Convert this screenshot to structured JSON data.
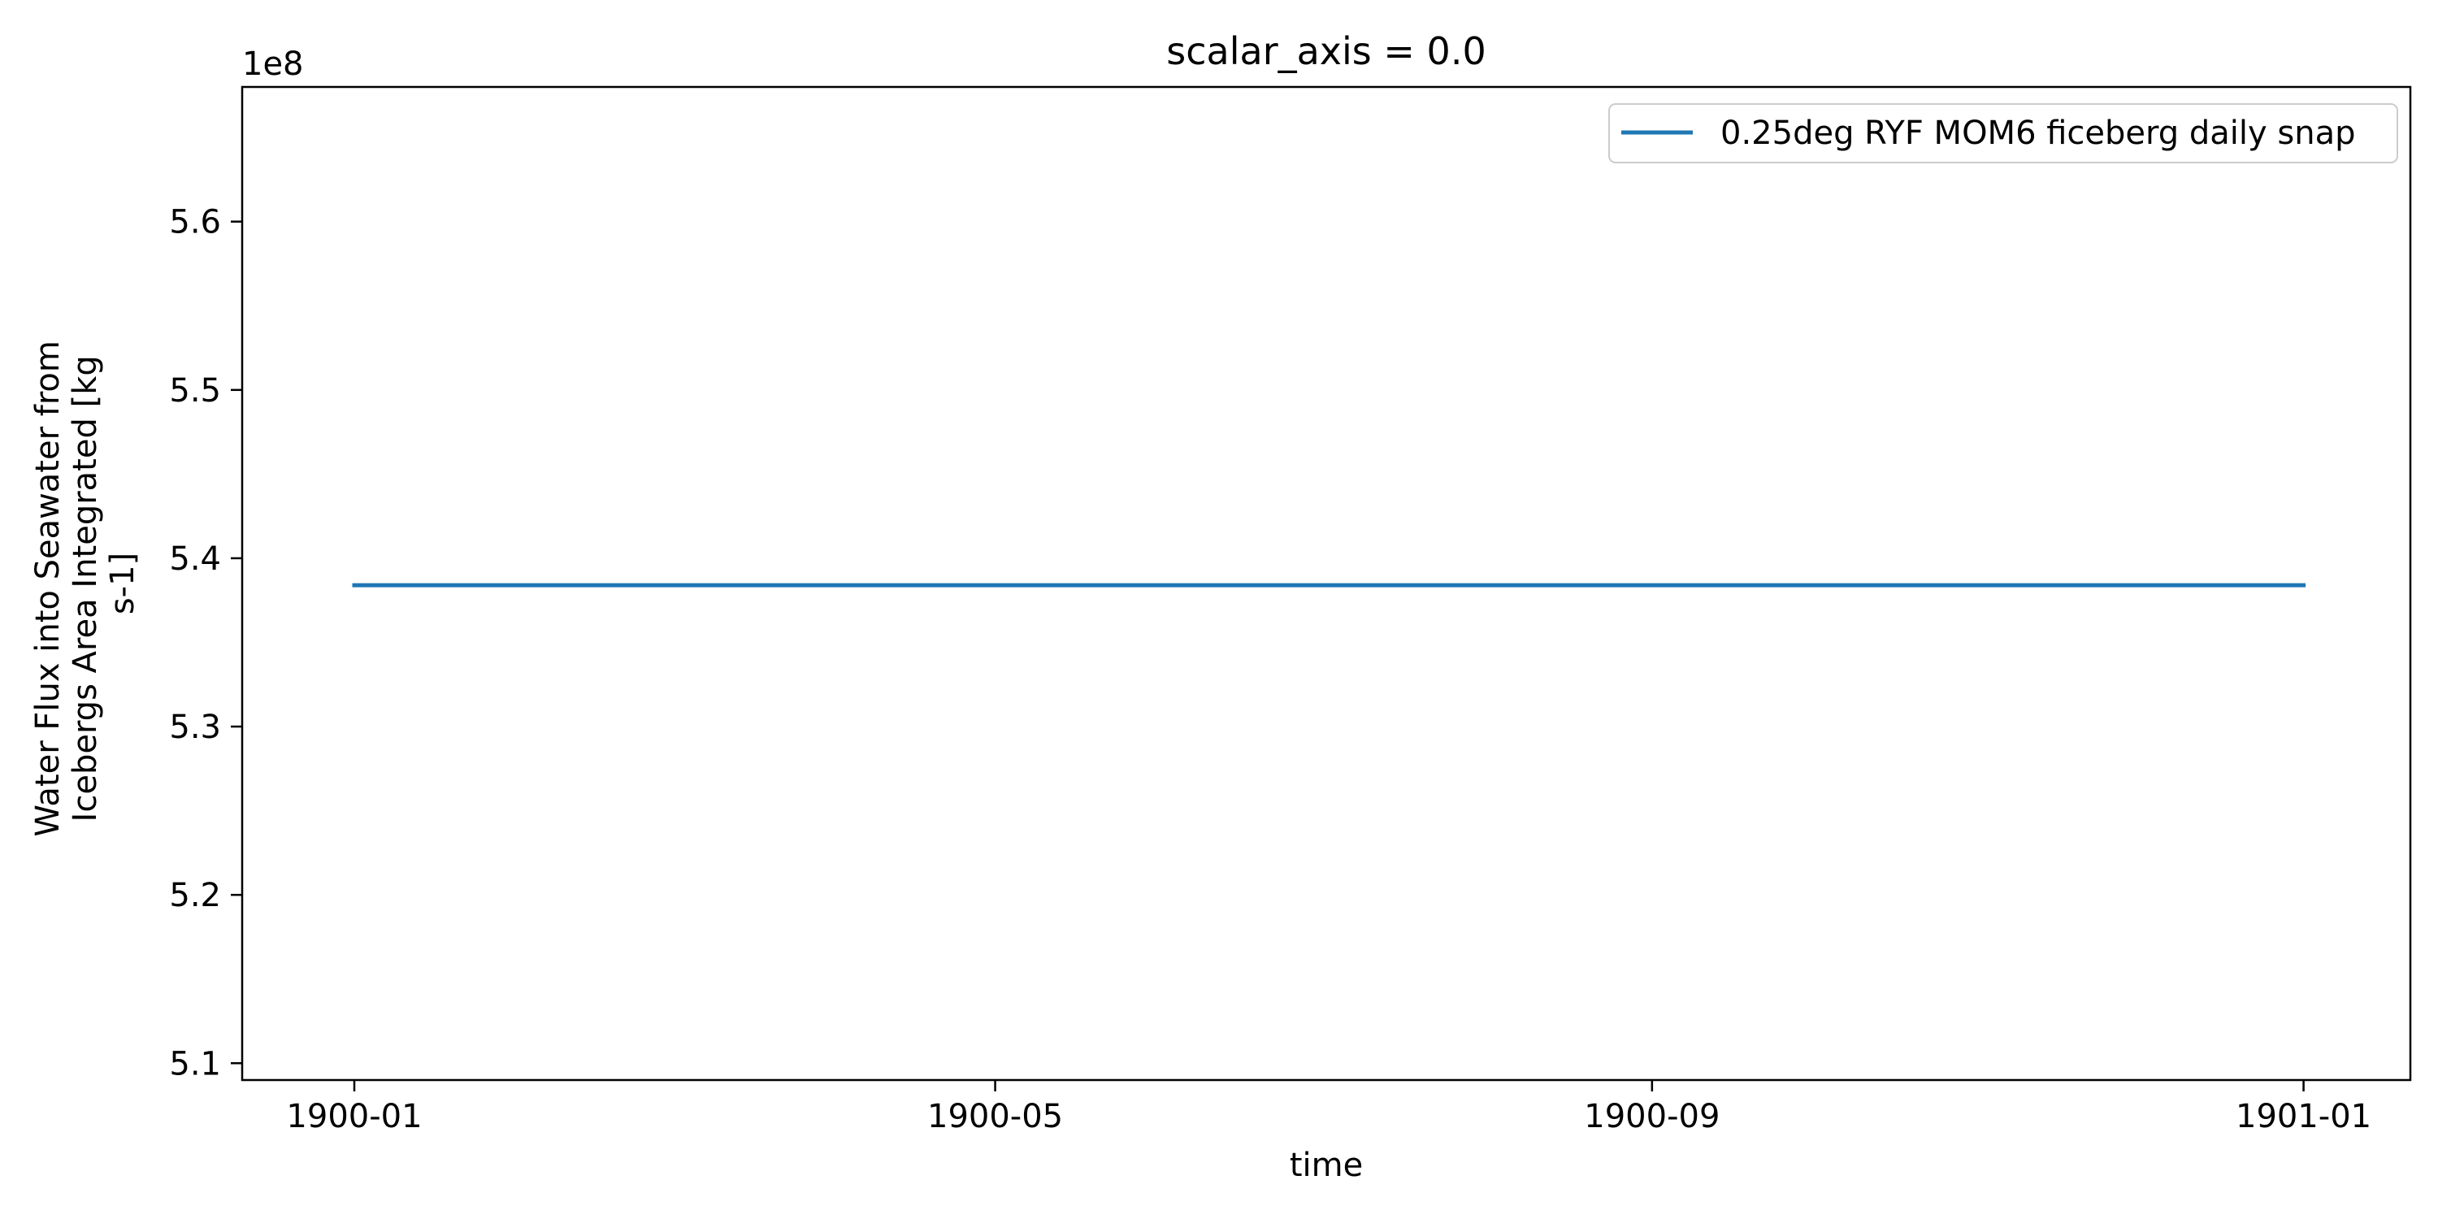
{
  "chart_data": {
    "type": "line",
    "title": "scalar_axis = 0.0",
    "xlabel": "time",
    "ylabel": [
      "Water Flux into Seawater from",
      "Icebergs Area Integrated [kg",
      "s-1]"
    ],
    "y_offset_text": "1e8",
    "xlim": [
      "1899-12-11",
      "1901-01-21"
    ],
    "ylim": [
      509000000,
      568000000
    ],
    "x_ticks": [
      {
        "date": "1900-01-01",
        "label": "1900-01"
      },
      {
        "date": "1900-05-01",
        "label": "1900-05"
      },
      {
        "date": "1900-09-01",
        "label": "1900-09"
      },
      {
        "date": "1901-01-01",
        "label": "1901-01"
      }
    ],
    "y_ticks": [
      {
        "value": 510000000,
        "label": "5.1"
      },
      {
        "value": 520000000,
        "label": "5.2"
      },
      {
        "value": 530000000,
        "label": "5.3"
      },
      {
        "value": 540000000,
        "label": "5.4"
      },
      {
        "value": 550000000,
        "label": "5.5"
      },
      {
        "value": 560000000,
        "label": "5.6"
      }
    ],
    "grid": false,
    "legend_position": "top-right",
    "series": [
      {
        "name": "0.25deg RYF MOM6 ficeberg daily snap",
        "color": "#1f77b4",
        "x": [
          "1900-01-01",
          "1901-01-01"
        ],
        "y": [
          538400000,
          538400000
        ]
      }
    ]
  }
}
